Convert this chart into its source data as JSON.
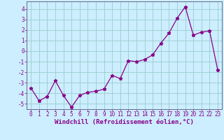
{
  "x": [
    0,
    1,
    2,
    3,
    4,
    5,
    6,
    7,
    8,
    9,
    10,
    11,
    12,
    13,
    14,
    15,
    16,
    17,
    18,
    19,
    20,
    21,
    22,
    23
  ],
  "y": [
    -3.5,
    -4.7,
    -4.3,
    -2.8,
    -4.2,
    -5.3,
    -4.2,
    -3.9,
    -3.8,
    -3.6,
    -2.3,
    -2.6,
    -0.9,
    -1.0,
    -0.8,
    -0.35,
    0.75,
    1.7,
    3.1,
    4.2,
    1.5,
    1.8,
    1.9,
    -1.8
  ],
  "xlim": [
    -0.5,
    23.5
  ],
  "ylim": [
    -5.5,
    4.7
  ],
  "yticks": [
    -5,
    -4,
    -3,
    -2,
    -1,
    0,
    1,
    2,
    3,
    4
  ],
  "xticks": [
    0,
    1,
    2,
    3,
    4,
    5,
    6,
    7,
    8,
    9,
    10,
    11,
    12,
    13,
    14,
    15,
    16,
    17,
    18,
    19,
    20,
    21,
    22,
    23
  ],
  "xlabel": "Windchill (Refroidissement éolien,°C)",
  "line_color": "#880088",
  "marker": "*",
  "marker_size": 3.5,
  "bg_color": "#cceeff",
  "grid_color": "#99cccc",
  "tick_color": "#880088",
  "label_color": "#880088",
  "axis_line_color": "#666688",
  "tick_fontsize": 5.5,
  "label_fontsize": 6.5
}
